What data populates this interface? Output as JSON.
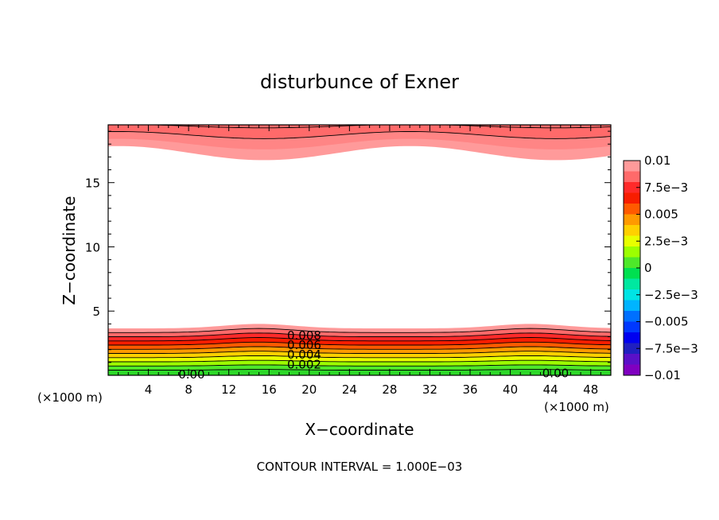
{
  "chart_data": {
    "type": "heatmap",
    "title": "disturbunce of Exner",
    "xlabel": "X−coordinate",
    "ylabel": "Z−coordinate",
    "x_unit_left": "(×1000 m)",
    "x_unit_right": "(×1000 m)",
    "footer": "CONTOUR INTERVAL = 1.000E−03",
    "xlim": [
      0,
      50
    ],
    "ylim": [
      0,
      19.5
    ],
    "x_ticks": [
      "4",
      "8",
      "12",
      "16",
      "20",
      "24",
      "28",
      "32",
      "36",
      "40",
      "44",
      "48"
    ],
    "y_ticks": [
      "5",
      "10",
      "15"
    ],
    "contour_interval": 0.001,
    "contour_labels": [
      "0.008",
      "0.006",
      "0.004",
      "0.002",
      "0.00",
      "0.00"
    ],
    "colorbar": {
      "labels": [
        "0.01",
        "7.5e−3",
        "0.005",
        "2.5e−3",
        "0",
        "−2.5e−3",
        "−0.005",
        "−7.5e−3",
        "−0.01"
      ],
      "colors": [
        "#ff9a9a",
        "#ff6a6a",
        "#ff2a2a",
        "#f81d00",
        "#ff5a00",
        "#ff9a00",
        "#ffd000",
        "#e8ff00",
        "#9cff00",
        "#4ee82a",
        "#00e050",
        "#00e8a0",
        "#00e4e4",
        "#00b4ff",
        "#0070ff",
        "#0038ff",
        "#0000f0",
        "#2020c0",
        "#5a10c8",
        "#8000c0"
      ]
    },
    "lower_band_colors": [
      "#ff9a9a",
      "#ff6a6a",
      "#ff2a2a",
      "#f81d00",
      "#ff5a00",
      "#ff9a00",
      "#ffd000",
      "#e8ff00",
      "#9cff00",
      "#4ee82a",
      "#2ed82a"
    ],
    "upper_band_colors": [
      "#ff9a9a",
      "#ff8585",
      "#ff6a6a"
    ],
    "background_color": "#ffffff"
  }
}
